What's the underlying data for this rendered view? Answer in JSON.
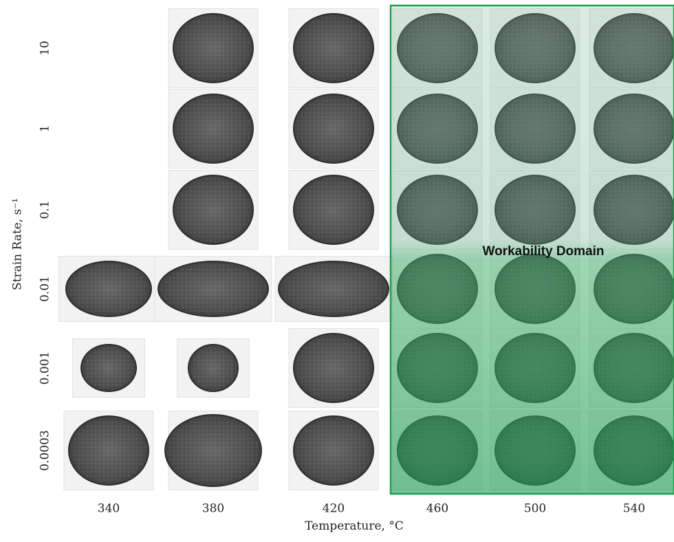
{
  "x_axis": {
    "label": "Temperature, °C",
    "ticks": [
      "340",
      "380",
      "420",
      "460",
      "500",
      "540"
    ]
  },
  "y_axis": {
    "label": "Strain Rate, s⁻¹",
    "ticks": [
      "10",
      "1",
      "0.1",
      "0.01",
      "0.001",
      "0.0003"
    ]
  },
  "domain_label": "Workability Domain"
}
